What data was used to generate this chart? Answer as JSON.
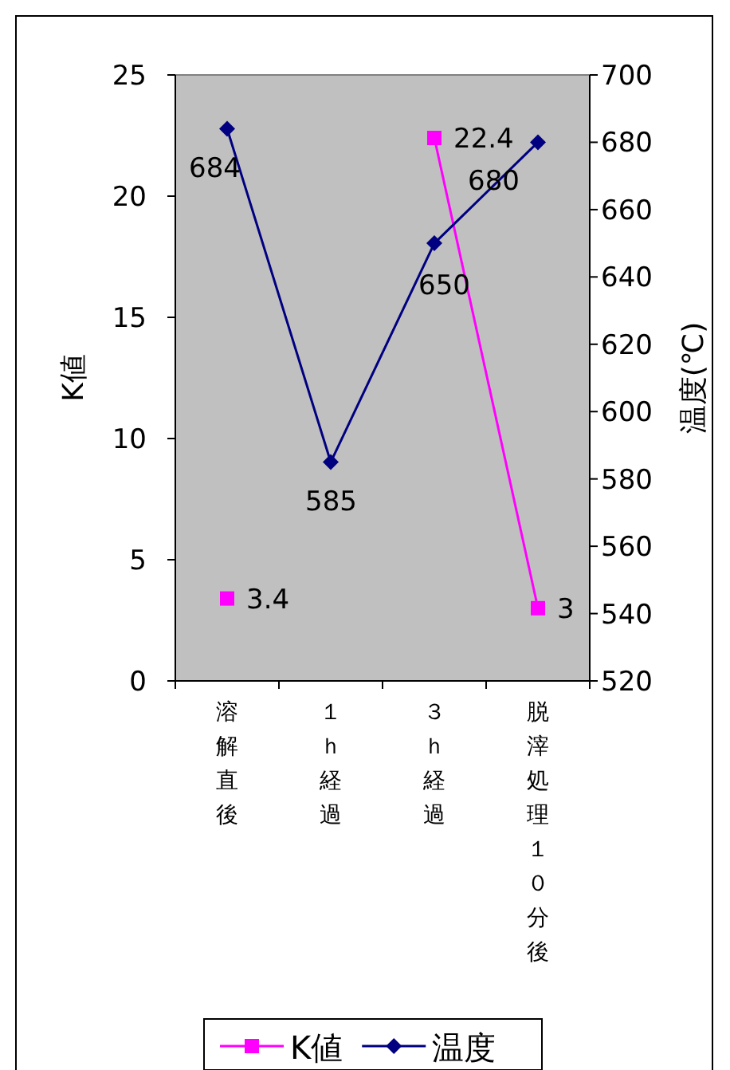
{
  "chart_data": {
    "type": "line",
    "categories": [
      "溶解直後",
      "１ｈ経過",
      "３ｈ経過",
      "脱滓処理１０分後"
    ],
    "series": [
      {
        "name": "K値",
        "color": "#ff00ff",
        "values": [
          3.4,
          null,
          22.4,
          3
        ],
        "marker": "square"
      },
      {
        "name": "温度",
        "color": "#000080",
        "values": [
          684,
          585,
          650,
          680
        ],
        "axis": "y2",
        "marker": "diamond"
      }
    ],
    "ylabel": "K値",
    "y2label": "温度(℃)",
    "ylim": [
      0,
      25
    ],
    "yticks": [
      0,
      5,
      10,
      15,
      20,
      25
    ],
    "y2lim": [
      520,
      700
    ],
    "y2ticks": [
      520,
      540,
      560,
      580,
      600,
      620,
      640,
      660,
      680,
      700
    ],
    "data_labels": true,
    "legend": "bottom",
    "grid": false
  }
}
